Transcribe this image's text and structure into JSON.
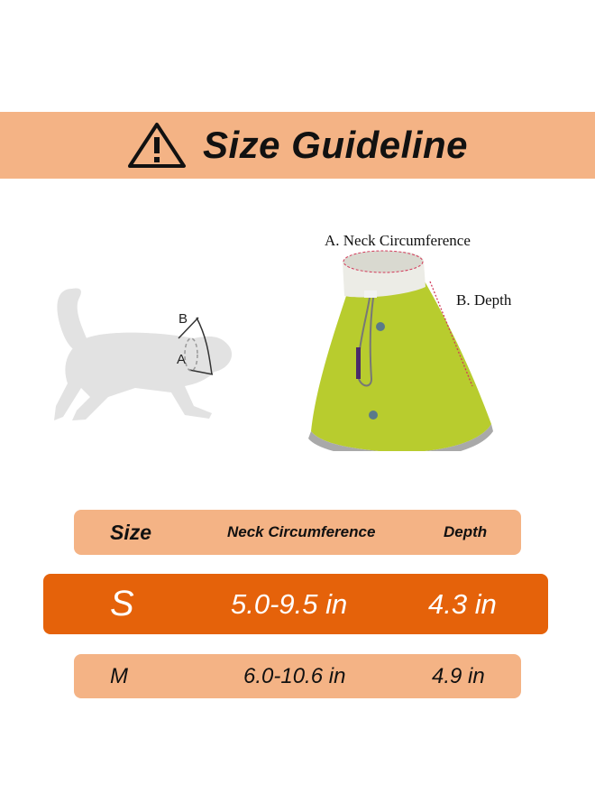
{
  "banner": {
    "icon": "warning-triangle-icon",
    "title": "Size Guideline"
  },
  "diagram": {
    "cat_label_a": "A",
    "cat_label_b": "B",
    "cone_label_a": "A. Neck Circumference",
    "cone_label_b": "B. Depth"
  },
  "table": {
    "headers": {
      "size": "Size",
      "neck": "Neck Circumference",
      "depth": "Depth"
    },
    "rows": [
      {
        "size": "S",
        "neck": "5.0-9.5 in",
        "depth": "4.3 in",
        "highlighted": true
      },
      {
        "size": "M",
        "neck": "6.0-10.6 in",
        "depth": "4.9 in",
        "highlighted": false
      }
    ]
  },
  "colors": {
    "banner": "#f4b385",
    "highlight": "#e5620a",
    "cone": "#b8cc2e"
  }
}
